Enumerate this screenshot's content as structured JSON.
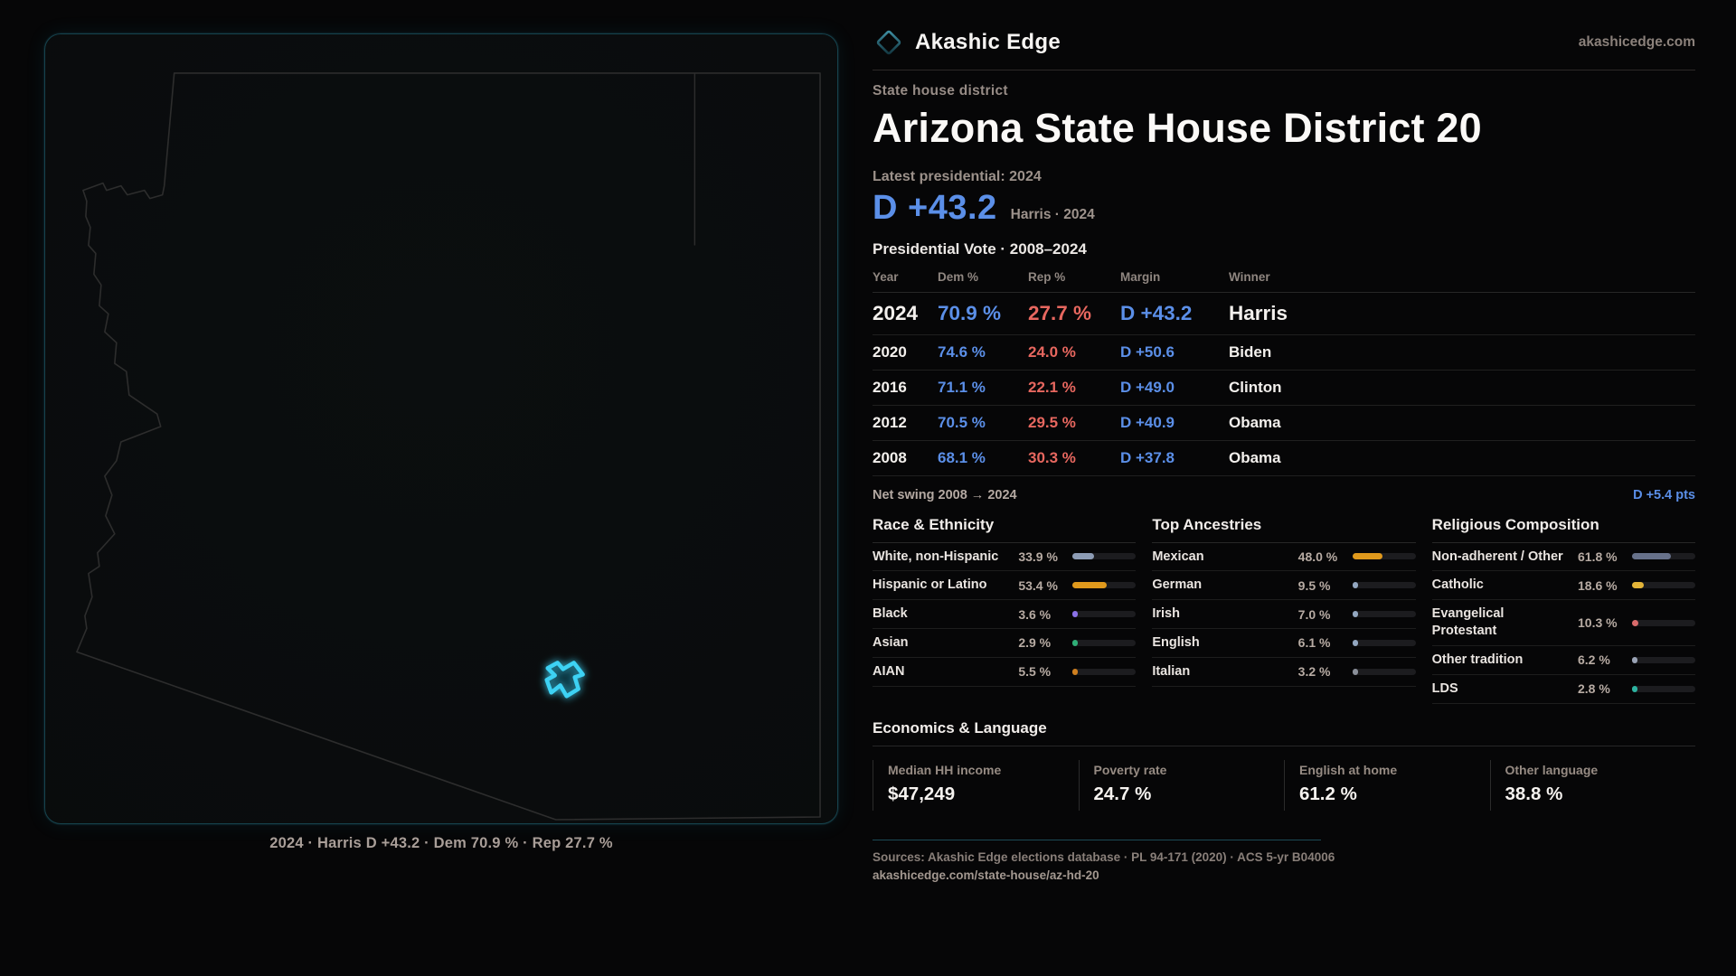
{
  "brand": {
    "name": "Akashic Edge",
    "domain": "akashicedge.com"
  },
  "page": {
    "eyebrow": "State house district",
    "title": "Arizona State House District 20"
  },
  "latest": {
    "label": "Latest presidential: 2024",
    "margin": "D +43.2",
    "detail": "Harris · 2024"
  },
  "pres_table": {
    "title": "Presidential Vote · 2008–2024",
    "columns": [
      "Year",
      "Dem %",
      "Rep %",
      "Margin",
      "Winner"
    ],
    "rows": [
      {
        "year": "2024",
        "dem": "70.9 %",
        "rep": "27.7 %",
        "margin": "D +43.2",
        "winner": "Harris",
        "highlight": true
      },
      {
        "year": "2020",
        "dem": "74.6 %",
        "rep": "24.0 %",
        "margin": "D +50.6",
        "winner": "Biden",
        "highlight": false
      },
      {
        "year": "2016",
        "dem": "71.1 %",
        "rep": "22.1 %",
        "margin": "D +49.0",
        "winner": "Clinton",
        "highlight": false
      },
      {
        "year": "2012",
        "dem": "70.5 %",
        "rep": "29.5 %",
        "margin": "D +40.9",
        "winner": "Obama",
        "highlight": false
      },
      {
        "year": "2008",
        "dem": "68.1 %",
        "rep": "30.3 %",
        "margin": "D +37.8",
        "winner": "Obama",
        "highlight": false
      }
    ]
  },
  "net_swing": {
    "label": "Net swing 2008 → 2024",
    "value": "D +5.4 pts"
  },
  "demographics": [
    {
      "title": "Race & Ethnicity",
      "rows": [
        {
          "label": "White, non-Hispanic",
          "value": "33.9 %",
          "pct": 33.9,
          "color": "#8d9cb5"
        },
        {
          "label": "Hispanic or Latino",
          "value": "53.4 %",
          "pct": 53.4,
          "color": "#e0991c"
        },
        {
          "label": "Black",
          "value": "3.6 %",
          "pct": 3.6,
          "color": "#8b72e8"
        },
        {
          "label": "Asian",
          "value": "2.9 %",
          "pct": 2.9,
          "color": "#2fae77"
        },
        {
          "label": "AIAN",
          "value": "5.5 %",
          "pct": 5.5,
          "color": "#cf7f1f"
        }
      ]
    },
    {
      "title": "Top Ancestries",
      "rows": [
        {
          "label": "Mexican",
          "value": "48.0 %",
          "pct": 48.0,
          "color": "#e0991c"
        },
        {
          "label": "German",
          "value": "9.5 %",
          "pct": 9.5,
          "color": "#93a7c0"
        },
        {
          "label": "Irish",
          "value": "7.0 %",
          "pct": 7.0,
          "color": "#93a7c0"
        },
        {
          "label": "English",
          "value": "6.1 %",
          "pct": 6.1,
          "color": "#93a7c0"
        },
        {
          "label": "Italian",
          "value": "3.2 %",
          "pct": 3.2,
          "color": "#8a8f99"
        }
      ]
    },
    {
      "title": "Religious Composition",
      "rows": [
        {
          "label": "Non-adherent / Other",
          "value": "61.8 %",
          "pct": 61.8,
          "color": "#67718a"
        },
        {
          "label": "Catholic",
          "value": "18.6 %",
          "pct": 18.6,
          "color": "#e3b438"
        },
        {
          "label": "Evangelical Protestant",
          "value": "10.3 %",
          "pct": 10.3,
          "color": "#d96b6b"
        },
        {
          "label": "Other tradition",
          "value": "6.2 %",
          "pct": 6.2,
          "color": "#9aa3b5"
        },
        {
          "label": "LDS",
          "value": "2.8 %",
          "pct": 2.8,
          "color": "#2db3a0"
        }
      ]
    }
  ],
  "economics": {
    "title": "Economics & Language",
    "stats": [
      {
        "label": "Median HH income",
        "value": "$47,249"
      },
      {
        "label": "Poverty rate",
        "value": "24.7 %"
      },
      {
        "label": "English at home",
        "value": "61.2 %"
      },
      {
        "label": "Other language",
        "value": "38.8 %"
      }
    ]
  },
  "map": {
    "caption": "2024 · Harris D +43.2 · Dem 70.9 % · Rep 27.7 %"
  },
  "footer": {
    "sources": "Sources: Akashic Edge elections database · PL 94-171 (2020) · ACS 5-yr B04006",
    "url": "akashicedge.com/state-house/az-hd-20"
  },
  "colors": {
    "dem": "#5b8fe8",
    "rep": "#e7675f",
    "accent": "#3dd2f4",
    "panel_border": "#16434d"
  }
}
